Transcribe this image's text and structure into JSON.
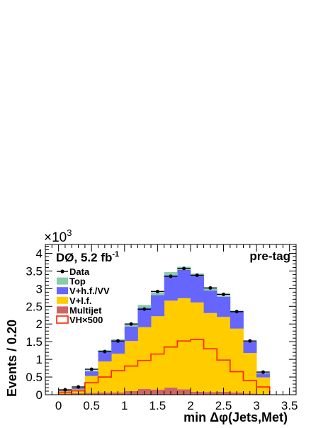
{
  "chart_data": {
    "type": "bar",
    "stacked_histogram": true,
    "experiment_label": "DØ, 5.2 fb",
    "experiment_label_sup": "-1",
    "region_label": "pre-tag",
    "xlabel": "min Δφ(Jets,Met)",
    "ylabel": "Events / 0.20",
    "y_multiplier": "×10",
    "y_multiplier_exp": "3",
    "xlim": [
      -0.2,
      3.6
    ],
    "ylim": [
      0,
      4.25
    ],
    "y_unit": "thousands of events",
    "x_ticks": [
      "0",
      "0.5",
      "1",
      "1.5",
      "2",
      "2.5",
      "3",
      "3.5"
    ],
    "x_tick_values": [
      0,
      0.5,
      1,
      1.5,
      2,
      2.5,
      3,
      3.5
    ],
    "y_ticks": [
      "0",
      "0.5",
      "1",
      "1.5",
      "2",
      "2.5",
      "3",
      "3.5",
      "4"
    ],
    "y_tick_values": [
      0,
      0.5,
      1,
      1.5,
      2,
      2.5,
      3,
      3.5,
      4
    ],
    "bin_edges": [
      0.0,
      0.2,
      0.4,
      0.6,
      0.8,
      1.0,
      1.2,
      1.4,
      1.6,
      1.8,
      2.0,
      2.2,
      2.4,
      2.6,
      2.8,
      3.0,
      3.2
    ],
    "stack_order": [
      "Multijet",
      "V+l.f.",
      "V+h.f./VV",
      "Top"
    ],
    "series": [
      {
        "name": "Multijet",
        "color": "#cc6666",
        "values": [
          0.03,
          0.04,
          0.05,
          0.06,
          0.06,
          0.1,
          0.16,
          0.14,
          0.2,
          0.15,
          0.08,
          0.07,
          0.08,
          0.06,
          0.03,
          0.02
        ]
      },
      {
        "name": "V+l.f.",
        "color": "#ffcc00",
        "values": [
          0.07,
          0.11,
          0.48,
          0.88,
          1.1,
          1.42,
          1.75,
          2.08,
          2.46,
          2.58,
          2.53,
          2.24,
          2.12,
          1.81,
          1.15,
          0.47
        ]
      },
      {
        "name": "V+h.f./VV",
        "color": "#6666ff",
        "values": [
          0.02,
          0.04,
          0.13,
          0.28,
          0.36,
          0.41,
          0.55,
          0.6,
          0.72,
          0.8,
          0.75,
          0.64,
          0.57,
          0.47,
          0.32,
          0.11
        ]
      },
      {
        "name": "Top",
        "color": "#88ccaa",
        "values": [
          0.0,
          0.01,
          0.03,
          0.04,
          0.05,
          0.06,
          0.08,
          0.08,
          0.09,
          0.09,
          0.07,
          0.06,
          0.05,
          0.04,
          0.03,
          0.02
        ]
      }
    ],
    "signal": {
      "name": "VH×500",
      "color": "#ff2200",
      "values": [
        0.07,
        0.11,
        0.34,
        0.5,
        0.68,
        0.81,
        0.97,
        1.15,
        1.35,
        1.52,
        1.56,
        1.3,
        0.98,
        0.65,
        0.4,
        0.22
      ]
    },
    "data": {
      "name": "Data",
      "x": [
        0.1,
        0.3,
        0.5,
        0.7,
        0.9,
        1.1,
        1.3,
        1.5,
        1.7,
        1.9,
        2.1,
        2.3,
        2.5,
        2.7,
        2.9,
        3.1
      ],
      "y": [
        0.14,
        0.22,
        0.72,
        1.22,
        1.52,
        2.0,
        2.42,
        2.92,
        3.35,
        3.57,
        3.38,
        3.02,
        2.84,
        2.35,
        1.52,
        0.64
      ]
    },
    "legend": [
      {
        "name": "Data",
        "kind": "marker",
        "color": "#000000"
      },
      {
        "name": "Top",
        "kind": "fill",
        "color": "#88ccaa"
      },
      {
        "name": "V+h.f./VV",
        "kind": "fill",
        "color": "#6666ff"
      },
      {
        "name": "V+l.f.",
        "kind": "fill",
        "color": "#ffcc00"
      },
      {
        "name": "Multijet",
        "kind": "fill",
        "color": "#cc6666"
      },
      {
        "name": "VH×500",
        "kind": "line",
        "color": "#ff2200"
      }
    ],
    "legend_position": "top-left",
    "grid": false
  }
}
